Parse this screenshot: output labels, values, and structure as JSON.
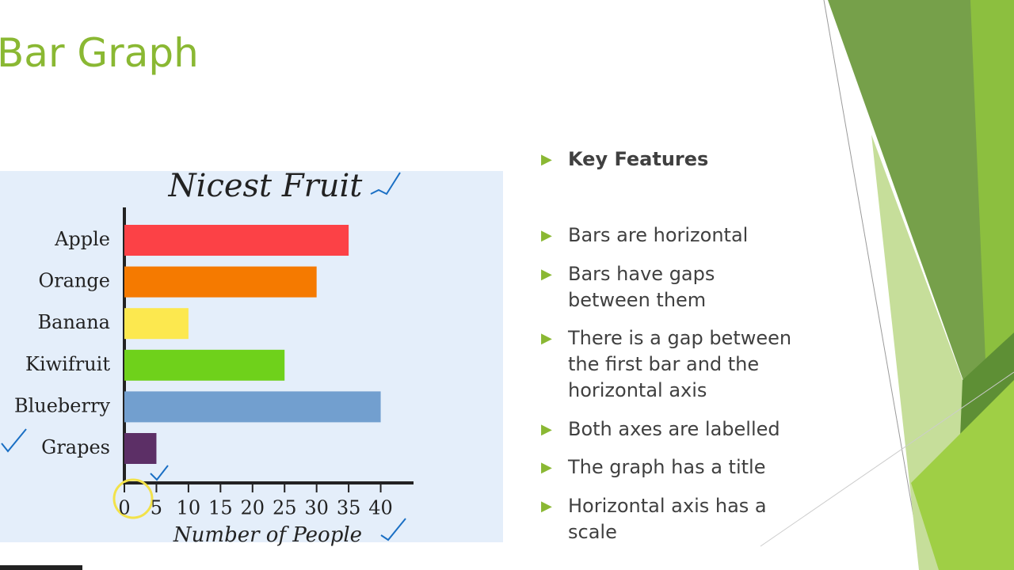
{
  "slide": {
    "title": "Bar Graph",
    "bullets": [
      "Key Features",
      "Bars are horizontal",
      "Bars have gaps between them",
      "There is a gap between the first bar and the horizontal axis",
      "Both axes are labelled",
      "The graph has a title",
      "Horizontal axis has a scale"
    ]
  },
  "chart_data": {
    "type": "hbar",
    "title": "Nicest Fruit",
    "categories": [
      "Apple",
      "Orange",
      "Banana",
      "Kiwifruit",
      "Blueberry",
      "Grapes"
    ],
    "values": [
      35,
      30,
      10,
      25,
      40,
      5
    ],
    "colors": [
      "#fc4146",
      "#f57a00",
      "#fce84f",
      "#6fd11b",
      "#729fcf",
      "#5c2f66"
    ],
    "xlim": [
      0,
      45
    ],
    "xticks": [
      0,
      5,
      10,
      15,
      20,
      25,
      30,
      35,
      40
    ],
    "xlabel": "Number of People"
  }
}
